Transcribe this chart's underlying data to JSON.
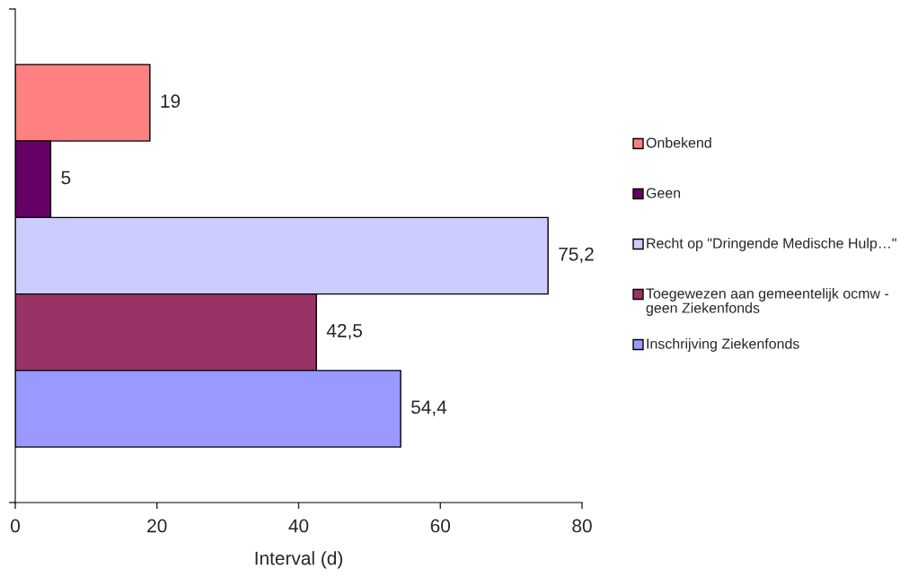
{
  "chart_data": {
    "type": "bar",
    "orientation": "horizontal",
    "categories": [
      null
    ],
    "series": [
      {
        "name": "Onbekend",
        "color": "#ff8080",
        "values": [
          19
        ],
        "value_labels": [
          "19"
        ]
      },
      {
        "name": "Geen",
        "color": "#660066",
        "values": [
          5
        ],
        "value_labels": [
          "5"
        ]
      },
      {
        "name": "Recht op \"Dringende Medische Hulp…\"",
        "color": "#ccccff",
        "values": [
          75.2
        ],
        "value_labels": [
          "75,2"
        ]
      },
      {
        "name": "Toegewezen aan gemeentelijk ocmw - geen Ziekenfonds",
        "color": "#993366",
        "values": [
          42.5
        ],
        "value_labels": [
          "42,5"
        ]
      },
      {
        "name": "Inschrijving Ziekenfonds",
        "color": "#9999ff",
        "values": [
          54.4
        ],
        "value_labels": [
          "54,4"
        ]
      }
    ],
    "xlabel": "Interval (d)",
    "xlim": [
      0,
      80
    ],
    "xticks": [
      0,
      20,
      40,
      60,
      80
    ],
    "grid": false,
    "legend": "right"
  }
}
